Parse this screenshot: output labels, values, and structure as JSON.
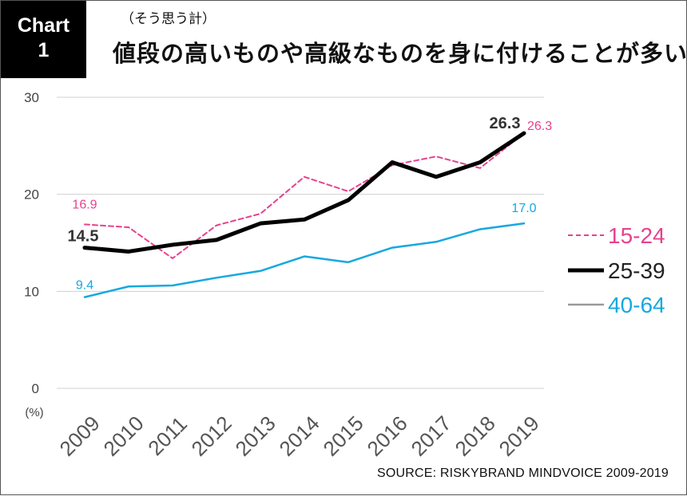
{
  "badge": {
    "line1": "Chart",
    "line2": "1"
  },
  "header": {
    "subtitle": "（そう思う計）",
    "title": "値段の高いものや高級なものを身に付けることが多い"
  },
  "source": "SOURCE: RISKYBRAND MINDVOICE 2009-2019",
  "chart_data": {
    "type": "line",
    "title": "値段の高いものや高級なものを身に付けることが多い",
    "subtitle": "（そう思う計）",
    "ylabel": "(%)",
    "xlabel": "",
    "x": [
      "2009",
      "2010",
      "2011",
      "2012",
      "2013",
      "2014",
      "2015",
      "2016",
      "2017",
      "2018",
      "2019"
    ],
    "ylim": [
      0,
      30
    ],
    "yticks": [
      "0",
      "10",
      "20",
      "30"
    ],
    "grid": true,
    "legend_position": "right",
    "series": [
      {
        "name": "15-24",
        "color": "#e8418e",
        "style": "dashed",
        "values": [
          16.9,
          16.6,
          13.4,
          16.8,
          18.0,
          21.8,
          20.3,
          23.0,
          23.9,
          22.7,
          26.3
        ],
        "labels": {
          "first": "16.9",
          "last": "26.3"
        }
      },
      {
        "name": "25-39",
        "color": "#000000",
        "style": "solid-thick",
        "values": [
          14.5,
          14.1,
          14.8,
          15.3,
          17.0,
          17.4,
          19.4,
          23.3,
          21.8,
          23.3,
          26.3
        ],
        "labels": {
          "first": "14.5",
          "last": "26.3"
        }
      },
      {
        "name": "40-64",
        "color": "#16a8e0",
        "style": "solid",
        "values": [
          9.4,
          10.5,
          10.6,
          11.4,
          12.1,
          13.6,
          13.0,
          14.5,
          15.1,
          16.4,
          17.0
        ],
        "labels": {
          "first": "9.4",
          "last": "17.0"
        }
      }
    ],
    "legend": [
      {
        "name": "15-24",
        "line_color": "#e8418e",
        "text_color": "#e8418e",
        "style": "dashed"
      },
      {
        "name": "25-39",
        "line_color": "#000000",
        "text_color": "#222222",
        "style": "solid-thick"
      },
      {
        "name": "40-64",
        "line_color": "#999999",
        "text_color": "#16a8e0",
        "style": "solid"
      }
    ]
  }
}
